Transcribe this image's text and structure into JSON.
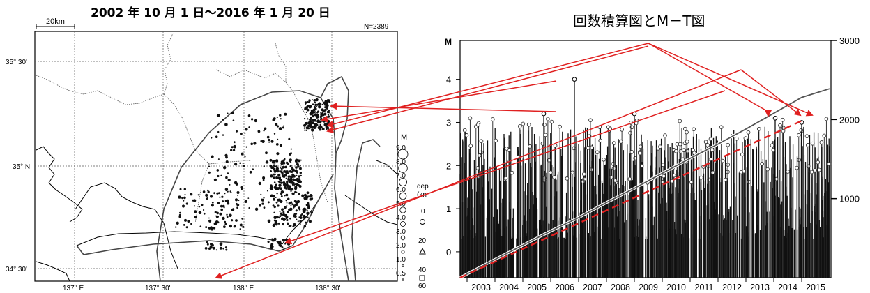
{
  "map": {
    "title": "2002 年 10 月 1 日～2016 年 1 月 20 日",
    "scale_label": "20km",
    "count_label": "N=2389",
    "lat_labels": [
      "35° 30'",
      "35° N",
      "34° 30'"
    ],
    "lon_labels": [
      "137° E",
      "137° 30'",
      "138° E",
      "138° 30'"
    ],
    "magnitude_legend": {
      "title": "M",
      "values": [
        "9.0",
        "8.0",
        "7.0",
        "6.0",
        "5.0",
        "4.0",
        "3.0",
        "2.0",
        "1.0",
        "0.5"
      ]
    },
    "depth_legend": {
      "labels": [
        "dep",
        "(kn",
        "0",
        "20",
        "40",
        "60"
      ]
    }
  },
  "chart_data": {
    "type": "scatter",
    "title": "回数積算図とM－T図",
    "y_left_label": "M",
    "y_left_ticks": [
      "0",
      "1",
      "2",
      "3",
      "4"
    ],
    "y_left_range": [
      -0.6,
      4.9
    ],
    "y_right_ticks": [
      "1000",
      "2000",
      "3000"
    ],
    "y_right_range": [
      0,
      3000
    ],
    "x_range": [
      2002.75,
      2016.05
    ],
    "x_tick_labels": [
      "2003",
      "2004",
      "2005",
      "2006",
      "2007",
      "2008",
      "2009",
      "2010",
      "2011",
      "2012",
      "2013",
      "2014",
      "2015"
    ],
    "highlight_events": [
      {
        "t": 2005.75,
        "m": 3.2
      },
      {
        "t": 2006.85,
        "m": 4.0
      },
      {
        "t": 2009.0,
        "m": 3.2
      },
      {
        "t": 2014.05,
        "m": 3.1
      },
      {
        "t": 2015.0,
        "m": 3.0
      }
    ],
    "cumulative": [
      {
        "t": 2002.75,
        "n": 0
      },
      {
        "t": 2004.0,
        "n": 230
      },
      {
        "t": 2005.0,
        "n": 410
      },
      {
        "t": 2006.0,
        "n": 590
      },
      {
        "t": 2007.0,
        "n": 760
      },
      {
        "t": 2008.0,
        "n": 950
      },
      {
        "t": 2009.0,
        "n": 1130
      },
      {
        "t": 2010.0,
        "n": 1320
      },
      {
        "t": 2011.0,
        "n": 1510
      },
      {
        "t": 2012.0,
        "n": 1690
      },
      {
        "t": 2013.0,
        "n": 1880
      },
      {
        "t": 2014.0,
        "n": 2080
      },
      {
        "t": 2015.0,
        "n": 2280
      },
      {
        "t": 2016.0,
        "n": 2389
      }
    ],
    "trend_line": [
      {
        "t": 2002.75,
        "n": 0
      },
      {
        "t": 2015.1,
        "n": 2000
      }
    ]
  }
}
